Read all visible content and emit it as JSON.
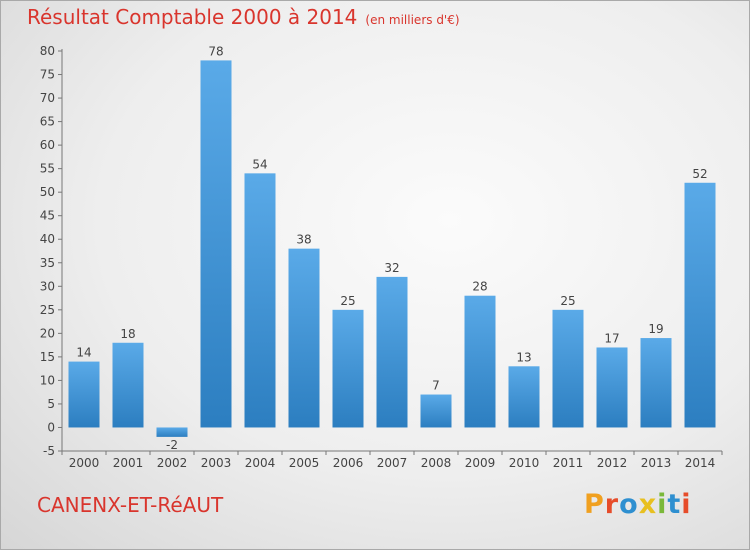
{
  "title": "Résultat Comptable 2000 à 2014",
  "unit": "(en milliers d'€)",
  "place": "CANENX-ET-RéAUT",
  "logo": "Proxiti",
  "colors": {
    "title": "#d9352d",
    "bar_light": "#5aaae8",
    "bar_dark": "#2c7ec0",
    "logo_letters": [
      "#f0a020",
      "#e64c2a",
      "#2e8fd0",
      "#e8c020",
      "#7ab83a",
      "#2e8fd0",
      "#e64c2a"
    ]
  },
  "chart_data": {
    "type": "bar",
    "title": "Résultat Comptable 2000 à 2014",
    "subtitle": "(en milliers d'€)",
    "categories": [
      "2000",
      "2001",
      "2002",
      "2003",
      "2004",
      "2005",
      "2006",
      "2007",
      "2008",
      "2009",
      "2010",
      "2011",
      "2012",
      "2013",
      "2014"
    ],
    "values": [
      14,
      18,
      -2,
      78,
      54,
      38,
      25,
      32,
      7,
      28,
      13,
      25,
      17,
      19,
      52
    ],
    "ylim": [
      -5,
      80
    ],
    "yticks": [
      -5,
      0,
      5,
      10,
      15,
      20,
      25,
      30,
      35,
      40,
      45,
      50,
      55,
      60,
      65,
      70,
      75,
      80
    ],
    "grid": false,
    "data_labels": true
  }
}
